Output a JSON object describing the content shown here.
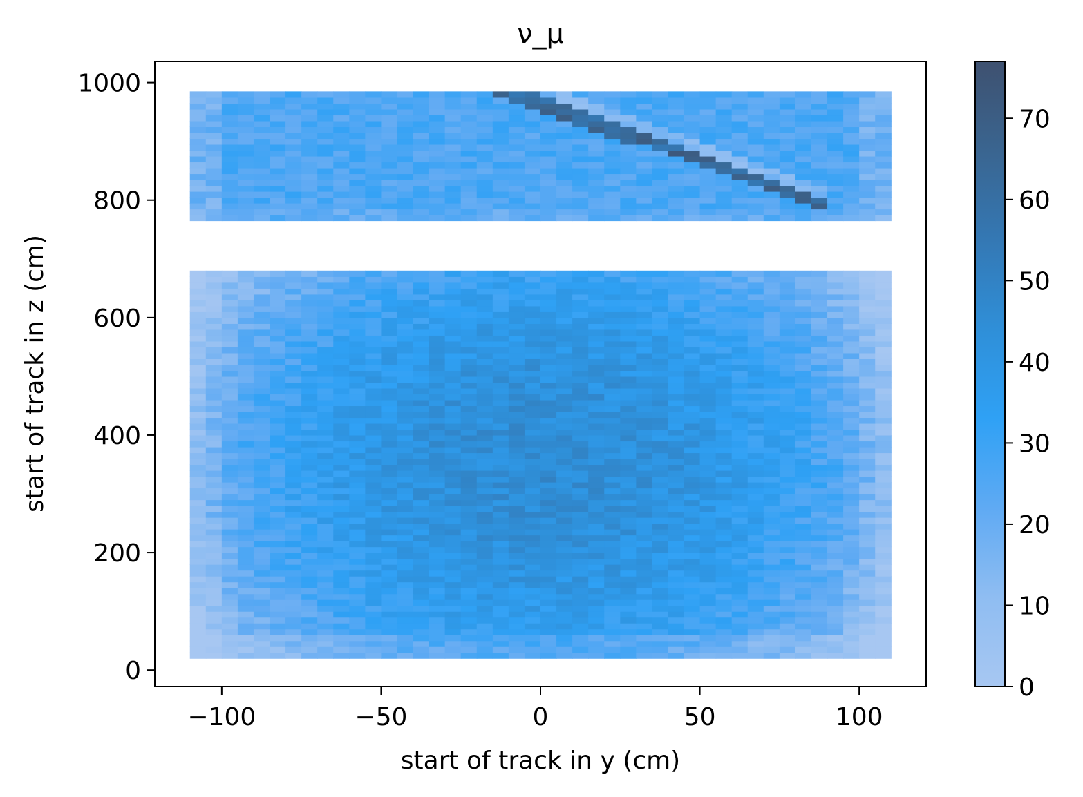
{
  "chart_data": {
    "type": "heatmap",
    "title": "ν_μ",
    "xlabel": "start of track in y (cm)",
    "ylabel": "start of track in z (cm)",
    "xlim": [
      -121,
      121
    ],
    "ylim": [
      -28,
      1036
    ],
    "xticks": [
      -100,
      -50,
      0,
      50,
      100
    ],
    "xtick_labels": [
      "−100",
      "−50",
      "0",
      "50",
      "100"
    ],
    "yticks": [
      0,
      200,
      400,
      600,
      800,
      1000
    ],
    "ytick_labels": [
      "0",
      "200",
      "400",
      "600",
      "800",
      "1000"
    ],
    "colorbar": {
      "min": 0,
      "max": 77,
      "ticks": [
        0,
        10,
        20,
        30,
        40,
        50,
        60,
        70
      ],
      "tick_labels": [
        "0",
        "10",
        "20",
        "30",
        "40",
        "50",
        "60",
        "70"
      ]
    },
    "colormap_stops": [
      "#a7c7f2",
      "#8fbdf2",
      "#5faaf3",
      "#2fa1f5",
      "#2f8fd8",
      "#3478b4",
      "#3a6590",
      "#3e5170"
    ],
    "bins": {
      "x_min": -110,
      "x_max": 110,
      "nx": 44,
      "regions": [
        {
          "z_min": 20,
          "z_max": 680,
          "nz": 66,
          "description": "lower detector region"
        },
        {
          "z_min": 765,
          "z_max": 985,
          "nz": 22,
          "description": "upper detector region"
        }
      ]
    },
    "features": {
      "lower_mean_count": 30,
      "lower_peak_count": 45,
      "upper_mean_count": 26,
      "diagonal_band_peak_count": 73,
      "diagonal_band_start": [
        -10,
        985
      ],
      "diagonal_band_end": [
        85,
        800
      ]
    },
    "grid": false,
    "colorbar_position": "right"
  }
}
